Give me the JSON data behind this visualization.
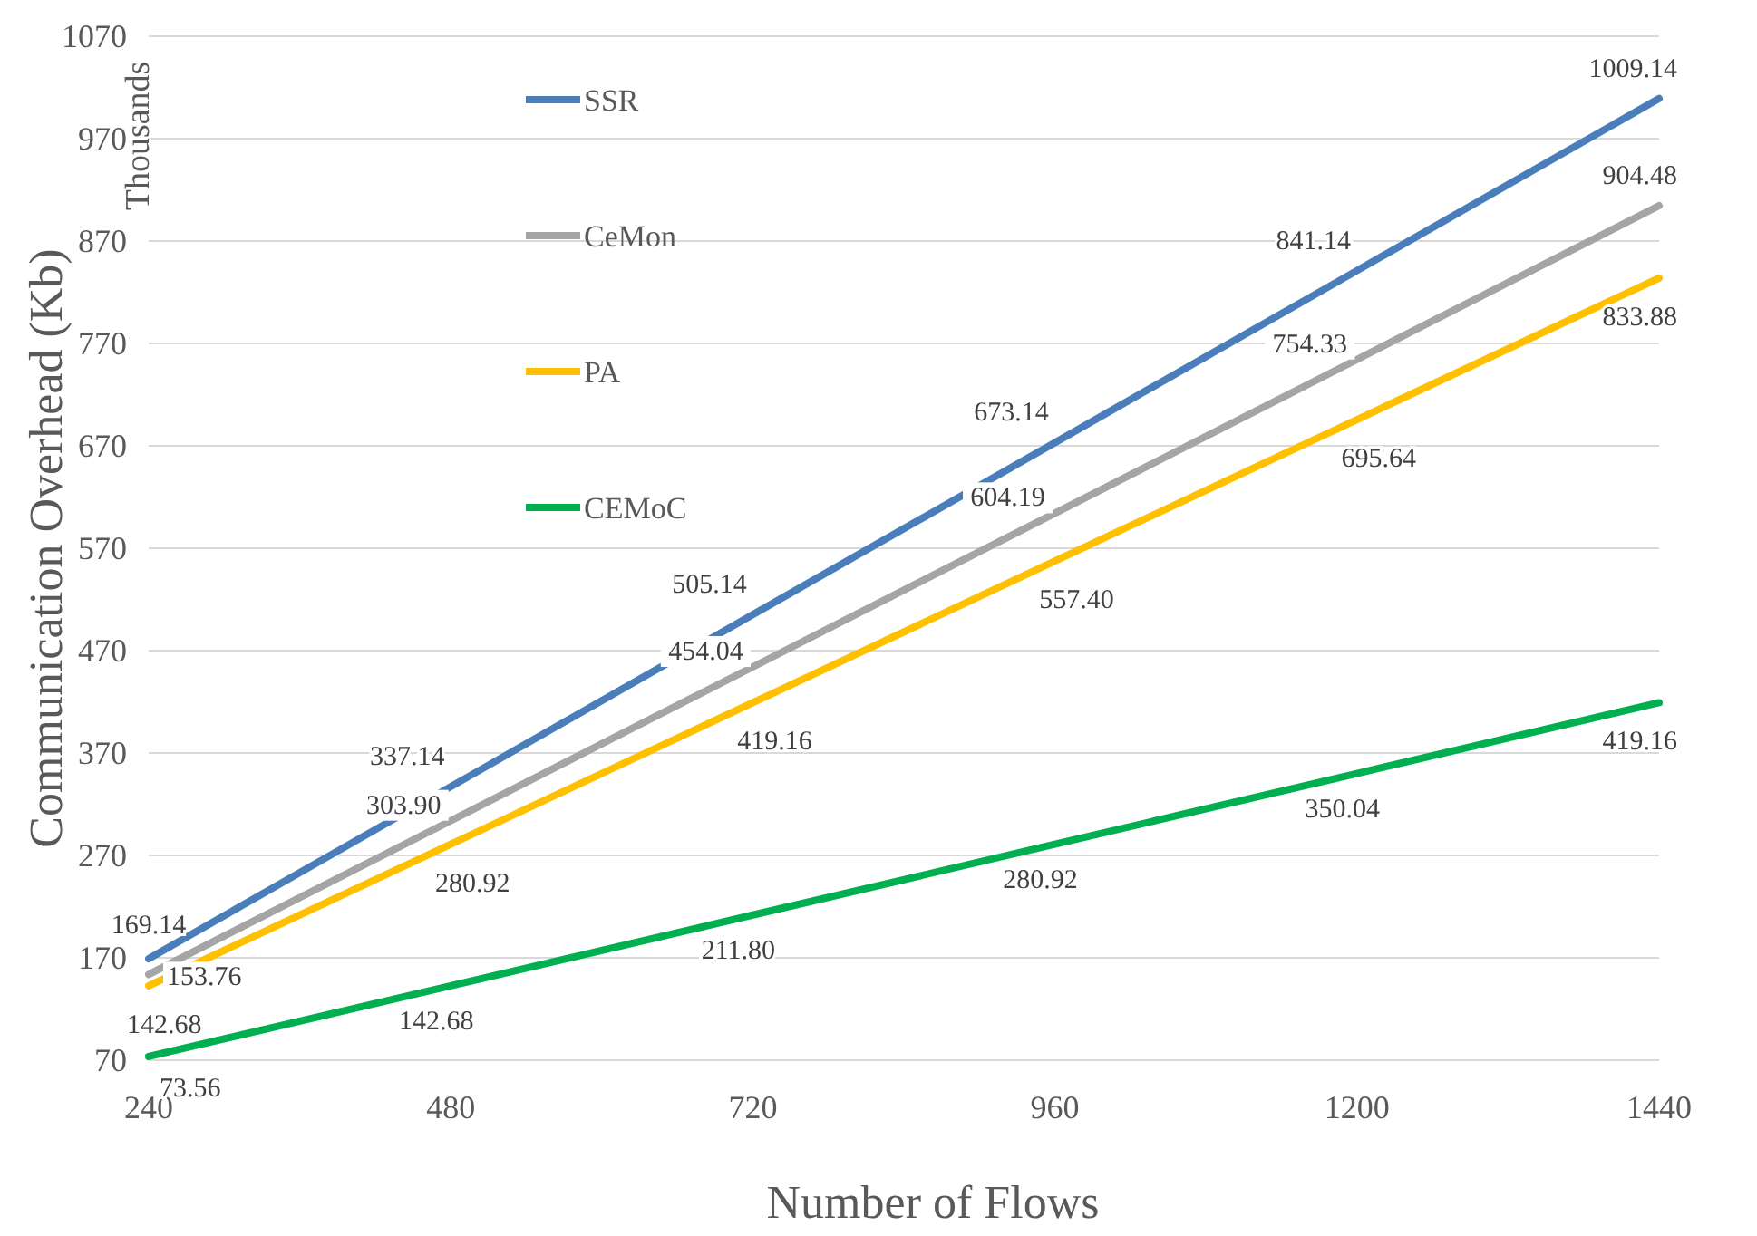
{
  "chart_data": {
    "type": "line",
    "xlabel": "Number of Flows",
    "ylabel": "Communication Overhead (Kb)",
    "annotations": [
      "Thousands"
    ],
    "x": [
      240,
      480,
      720,
      960,
      1200,
      1440
    ],
    "series": [
      {
        "name": "SSR",
        "color": "#4a7ebb",
        "values": [
          169.14,
          337.14,
          505.14,
          673.14,
          841.14,
          1009.14
        ],
        "value_labels": [
          "169.14",
          "337.14",
          "505.14",
          "673.14",
          "841.14",
          "1009.14"
        ]
      },
      {
        "name": "CeMon",
        "color": "#a5a5a5",
        "values": [
          153.76,
          303.9,
          454.04,
          604.19,
          754.33,
          904.48
        ],
        "value_labels": [
          "153.76",
          "303.90",
          "454.04",
          "604.19",
          "754.33",
          "904.48"
        ]
      },
      {
        "name": "PA",
        "color": "#ffc000",
        "values": [
          142.68,
          280.92,
          419.16,
          557.4,
          695.64,
          833.88
        ],
        "value_labels": [
          "142.68",
          "280.92",
          "419.16",
          "557.40",
          "695.64",
          "833.88"
        ]
      },
      {
        "name": "CEMoC",
        "color": "#00b050",
        "values": [
          73.56,
          142.68,
          211.8,
          280.92,
          350.04,
          419.16
        ],
        "value_labels": [
          "73.56",
          "142.68",
          "211.80",
          "280.92",
          "350.04",
          "419.16"
        ]
      }
    ],
    "xlim": [
      240,
      1440
    ],
    "xticks": [
      240,
      480,
      720,
      960,
      1200,
      1440
    ],
    "ylim": [
      70,
      1070
    ],
    "yticks": [
      70,
      170,
      270,
      370,
      470,
      570,
      670,
      770,
      870,
      970,
      1070
    ],
    "grid": "y",
    "legend": "top left",
    "line_style": "solid",
    "marker": "none"
  }
}
